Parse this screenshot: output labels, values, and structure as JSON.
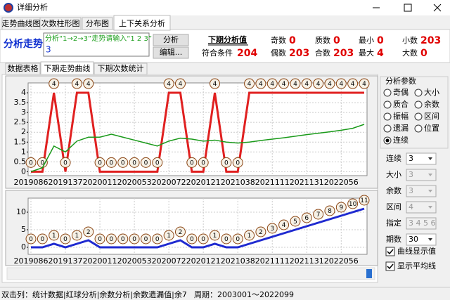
{
  "window": {
    "title": "详细分析"
  },
  "tabs": [
    {
      "label": "走势曲线图"
    },
    {
      "label": "次数柱形图"
    },
    {
      "label": "分布图"
    },
    {
      "label": "上下关系分析",
      "selected": true
    }
  ],
  "analysis": {
    "heading": "分析走势",
    "hint": "分析“1→2→3”走势请输入“1 2 3”",
    "input": 3,
    "buttons": [
      "分析",
      "编辑..."
    ],
    "next_title": "下期分析值",
    "match_label": "符合条件",
    "match_value": 204,
    "stats": [
      {
        "label": "奇数",
        "value": 0
      },
      {
        "label": "偶数",
        "value": 203
      },
      {
        "label": "质数",
        "value": 0
      },
      {
        "label": "合数",
        "value": 203
      },
      {
        "label": "最小",
        "value": 0
      },
      {
        "label": "最大",
        "value": 4
      },
      {
        "label": "小数",
        "value": 203
      },
      {
        "label": "大数",
        "value": 0
      }
    ]
  },
  "subtabs": [
    {
      "label": "数据表格"
    },
    {
      "label": "下期走势曲线",
      "selected": true
    },
    {
      "label": "下期次数统计"
    }
  ],
  "chart_data": [
    {
      "type": "line",
      "categories": [
        "2019086",
        null,
        null,
        "2019137",
        null,
        null,
        "2020011",
        null,
        null,
        "2020053",
        null,
        null,
        "2020072",
        null,
        null,
        "2020121",
        null,
        null,
        "2021038",
        null,
        null,
        "2021111",
        null,
        null,
        "2021131",
        null,
        null,
        "2022056",
        null,
        null
      ],
      "series": [
        {
          "color": "#e02020",
          "width": 3,
          "labels": true,
          "values": [
            0,
            0,
            4,
            0,
            4,
            4,
            0,
            0,
            0,
            0,
            0,
            0,
            4,
            4,
            0,
            0,
            4,
            0,
            0,
            4,
            4,
            4,
            4,
            4,
            4,
            4,
            4,
            4,
            4,
            4
          ]
        },
        {
          "color": "#1a9a1a",
          "width": 1.5,
          "labels": false,
          "values": [
            0,
            0.2,
            1.3,
            1.0,
            1.55,
            1.75,
            1.75,
            1.9,
            1.75,
            1.6,
            1.45,
            1.3,
            1.55,
            1.7,
            1.65,
            1.55,
            1.6,
            1.5,
            1.45,
            1.5,
            1.58,
            1.65,
            1.72,
            1.8,
            1.88,
            1.95,
            2.02,
            2.1,
            2.2,
            2.4
          ]
        }
      ],
      "ylim": [
        -0.2,
        4.5
      ],
      "yticks": [
        0,
        0.5,
        1,
        1.5,
        2,
        2.5,
        3,
        3.5,
        4
      ],
      "grid": true
    },
    {
      "type": "line",
      "categories": [
        "2019086",
        null,
        null,
        "2019137",
        null,
        null,
        "2020011",
        null,
        null,
        "2020053",
        null,
        null,
        "2020072",
        null,
        null,
        "2020121",
        null,
        null,
        "2021038",
        null,
        null,
        "2021111",
        null,
        null,
        "2021131",
        null,
        null,
        "2022056",
        null,
        null
      ],
      "series": [
        {
          "color": "#1f2ad0",
          "width": 3,
          "labels": true,
          "values": [
            0,
            0,
            1,
            0,
            1,
            2,
            0,
            0,
            0,
            0,
            0,
            0,
            1,
            2,
            0,
            0,
            1,
            0,
            0,
            1,
            2,
            3,
            4,
            5,
            6,
            7,
            8,
            9,
            10,
            11
          ]
        }
      ],
      "ylim": [
        -2,
        14
      ],
      "yticks": [
        0,
        5,
        10
      ],
      "grid": true
    }
  ],
  "params": {
    "title": "分析参数",
    "options": [
      {
        "label": "奇偶"
      },
      {
        "label": "大小"
      },
      {
        "label": "质合"
      },
      {
        "label": "余数"
      },
      {
        "label": "振幅"
      },
      {
        "label": "区间"
      },
      {
        "label": "遗漏"
      },
      {
        "label": "位置"
      },
      {
        "label": "连续",
        "checked": true
      }
    ],
    "fields": [
      {
        "label": "连续",
        "value": 3
      },
      {
        "label": "大小",
        "value": 3,
        "disabled": true
      },
      {
        "label": "余数",
        "value": 3,
        "disabled": true
      },
      {
        "label": "区间",
        "value": 4,
        "disabled": true
      },
      {
        "label": "指定",
        "value": "3 4 5 6",
        "disabled": true
      },
      {
        "label": "期数",
        "value": 30
      }
    ],
    "checks": [
      {
        "label": "曲线显示值",
        "checked": true
      },
      {
        "label": "显示平均线",
        "checked": true
      }
    ]
  },
  "status": {
    "left": "双击列：统计数据|红球分析|余数分析|余数遗漏值|余7",
    "right": "周期：2003001～2022099"
  }
}
